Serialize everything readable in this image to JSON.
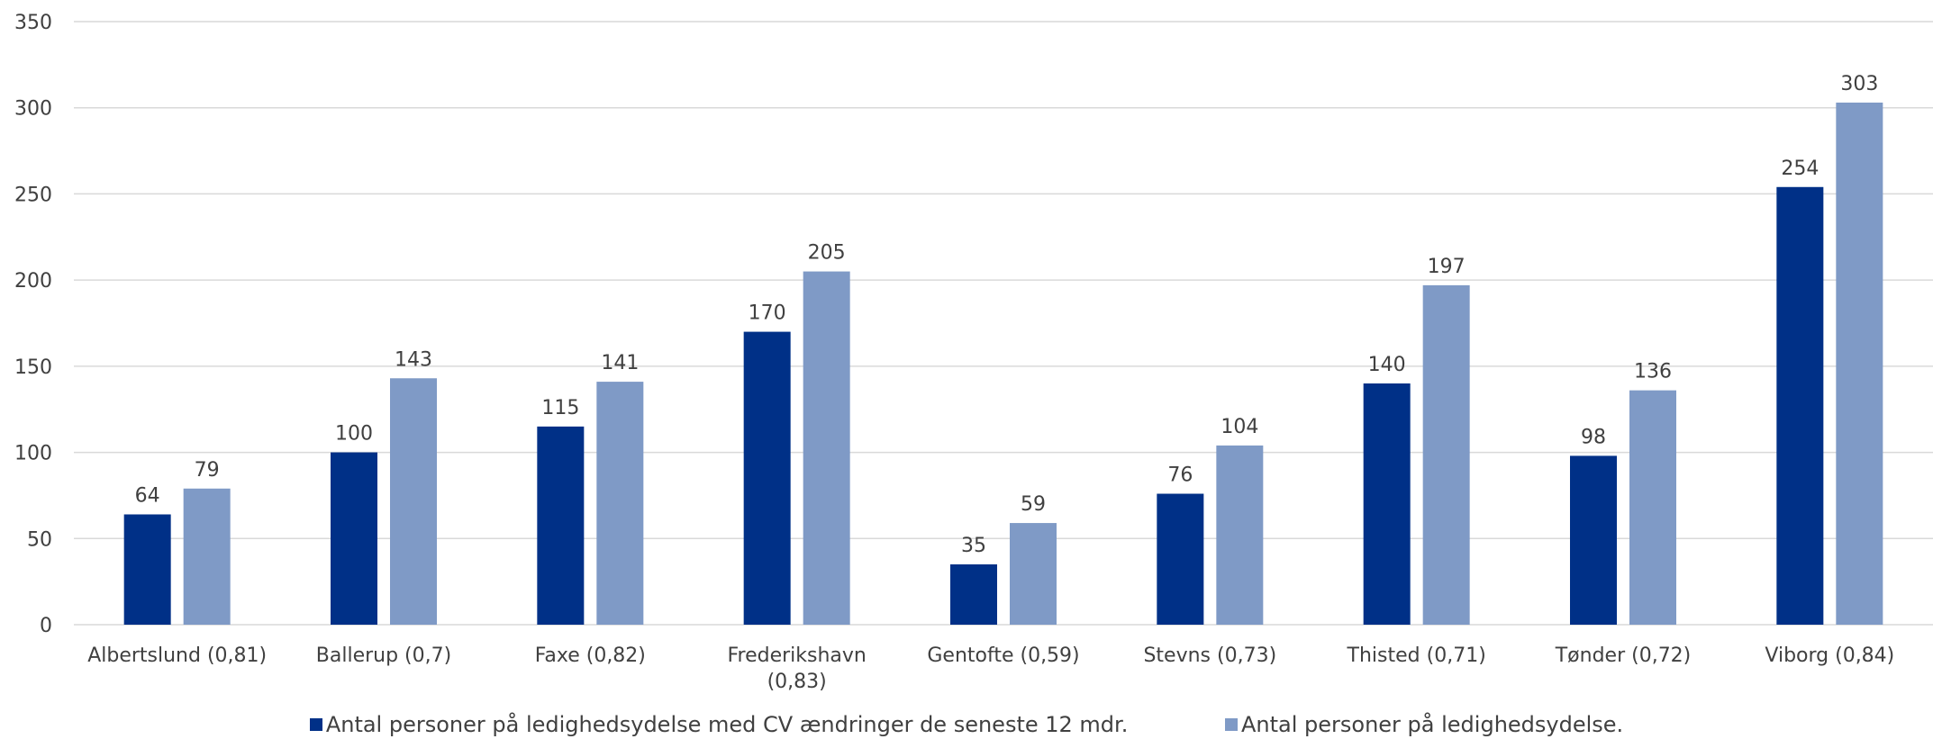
{
  "chart_data": {
    "type": "bar",
    "categories": [
      "Albertslund (0,81)",
      "Ballerup (0,7)",
      "Faxe (0,82)",
      "Frederikshavn (0,83)",
      "Gentofte (0,59)",
      "Stevns (0,73)",
      "Thisted (0,71)",
      "Tønder (0,72)",
      "Viborg (0,84)"
    ],
    "category_lines": [
      [
        "Albertslund (0,81)"
      ],
      [
        "Ballerup (0,7)"
      ],
      [
        "Faxe (0,82)"
      ],
      [
        "Frederikshavn",
        "(0,83)"
      ],
      [
        "Gentofte (0,59)"
      ],
      [
        "Stevns (0,73)"
      ],
      [
        "Thisted (0,71)"
      ],
      [
        "Tønder (0,72)"
      ],
      [
        "Viborg (0,84)"
      ]
    ],
    "series": [
      {
        "name": "Antal personer på ledighedsydelse med CV ændringer de seneste 12 mdr.",
        "color": "#003087",
        "values": [
          64,
          100,
          115,
          170,
          35,
          76,
          140,
          98,
          254
        ]
      },
      {
        "name": "Antal personer på ledighedsydelse.",
        "color": "#7f9ac6",
        "values": [
          79,
          143,
          141,
          205,
          59,
          104,
          197,
          136,
          303
        ]
      }
    ],
    "ylim": [
      0,
      350
    ],
    "yticks": [
      0,
      50,
      100,
      150,
      200,
      250,
      300,
      350
    ],
    "grid": true,
    "legend_position": "bottom",
    "title": "",
    "xlabel": "",
    "ylabel": ""
  }
}
